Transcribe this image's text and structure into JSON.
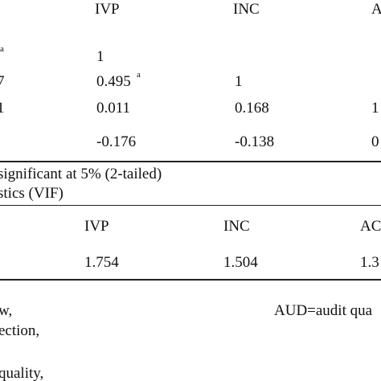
{
  "table1": {
    "header": [
      "IVP",
      "INC",
      "A"
    ],
    "rows": [
      {
        "label": "a",
        "cells": [
          "1"
        ]
      },
      {
        "label": "7",
        "cells": [
          "0.495",
          "1"
        ],
        "note": "a"
      },
      {
        "label": "1",
        "cells": [
          "0.011",
          "0.168",
          "1"
        ]
      },
      {
        "cells": [
          "-0.176",
          "-0.138",
          "0"
        ]
      }
    ]
  },
  "footnote": "significant at 5% (2-tailed)",
  "table2": {
    "title": "stics (VIF)",
    "header": [
      "IVP",
      "INC",
      "AC"
    ],
    "rows": [
      {
        "cells": [
          "1.754",
          "1.504",
          "1.3"
        ]
      }
    ]
  },
  "notes": [
    "w,",
    "ection,",
    "quality,",
    "AUD=audit qua"
  ]
}
